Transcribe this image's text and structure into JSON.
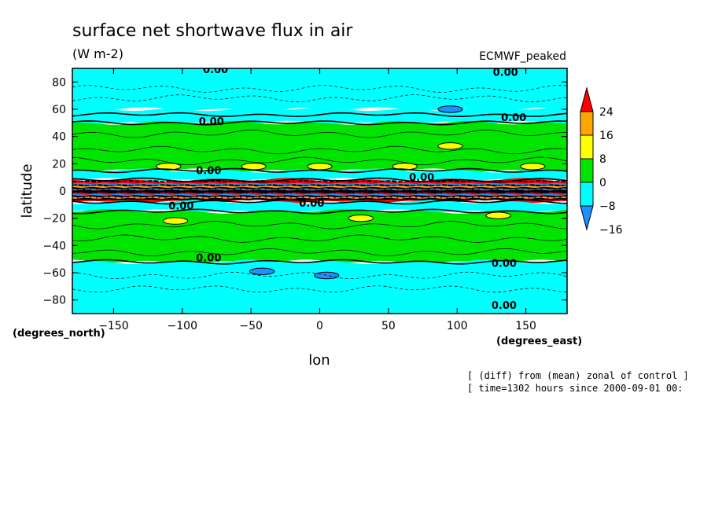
{
  "chart_data": {
    "type": "heatmap",
    "title": "surface net shortwave flux in air",
    "units": "(W m-2)",
    "model": "ECMWF_peaked",
    "xlabel": "lon",
    "ylabel": "latitude",
    "xunits": "(degrees_east)",
    "yunits": "(degrees_north)",
    "xlim": [
      -180,
      180
    ],
    "ylim": [
      -90,
      90
    ],
    "xticks": [
      -150,
      -100,
      -50,
      0,
      50,
      100,
      150
    ],
    "yticks": [
      -80,
      -60,
      -40,
      -20,
      0,
      20,
      40,
      60,
      80
    ],
    "xtick_labels": [
      "−150",
      "−100",
      "−50",
      "0",
      "50",
      "100",
      "150"
    ],
    "ytick_labels": [
      "−80",
      "−60",
      "−40",
      "−20",
      "0",
      "20",
      "40",
      "60",
      "80"
    ],
    "contour_label": "0.00",
    "colorbar": {
      "levels": [
        24,
        16,
        8,
        0,
        -8,
        -16
      ],
      "labels": [
        "24",
        "16",
        "8",
        "0",
        "−8",
        "−16"
      ],
      "colors": [
        "#ff0000",
        "#ffa500",
        "#ffff00",
        "#00e400",
        "#00ffff",
        "#1e90ff"
      ]
    },
    "bands": [
      {
        "lat": [
          60,
          90
        ],
        "value": -4
      },
      {
        "lat": [
          50,
          60
        ],
        "value": -2
      },
      {
        "lat": [
          15,
          50
        ],
        "value": 4
      },
      {
        "lat": [
          8,
          15
        ],
        "value": -4
      },
      {
        "lat": [
          -8,
          8
        ],
        "value": 30
      },
      {
        "lat": [
          -15,
          -8
        ],
        "value": -4
      },
      {
        "lat": [
          -52,
          -15
        ],
        "value": 4
      },
      {
        "lat": [
          -90,
          -52
        ],
        "value": -4
      }
    ],
    "blobs": [
      {
        "lon": -110,
        "lat": 18,
        "value": 10
      },
      {
        "lon": -48,
        "lat": 18,
        "value": 10
      },
      {
        "lon": 0,
        "lat": 18,
        "value": 10
      },
      {
        "lon": 62,
        "lat": 18,
        "value": 10
      },
      {
        "lon": 95,
        "lat": 33,
        "value": 10
      },
      {
        "lon": 155,
        "lat": 18,
        "value": 10
      },
      {
        "lon": -105,
        "lat": -22,
        "value": 10
      },
      {
        "lon": 30,
        "lat": -20,
        "value": 10
      },
      {
        "lon": 130,
        "lat": -18,
        "value": 10
      },
      {
        "lon": 95,
        "lat": 60,
        "value": -10
      },
      {
        "lon": -42,
        "lat": -59,
        "value": -10
      },
      {
        "lon": 5,
        "lat": -62,
        "value": -10
      }
    ],
    "contour_label_positions": [
      {
        "lon": -85,
        "lat": 87
      },
      {
        "lon": 126,
        "lat": 85
      },
      {
        "lon": -88,
        "lat": 49
      },
      {
        "lon": 132,
        "lat": 52
      },
      {
        "lon": -90,
        "lat": 13
      },
      {
        "lon": 65,
        "lat": 8
      },
      {
        "lon": -110,
        "lat": -13
      },
      {
        "lon": -15,
        "lat": -11
      },
      {
        "lon": -90,
        "lat": -51
      },
      {
        "lon": 125,
        "lat": -55
      },
      {
        "lon": 125,
        "lat": -86
      }
    ]
  },
  "footer": {
    "line1": "[ (diff) from (mean) zonal of control ]",
    "line2": "[ time=1302 hours since 2000-09-01 00:"
  }
}
